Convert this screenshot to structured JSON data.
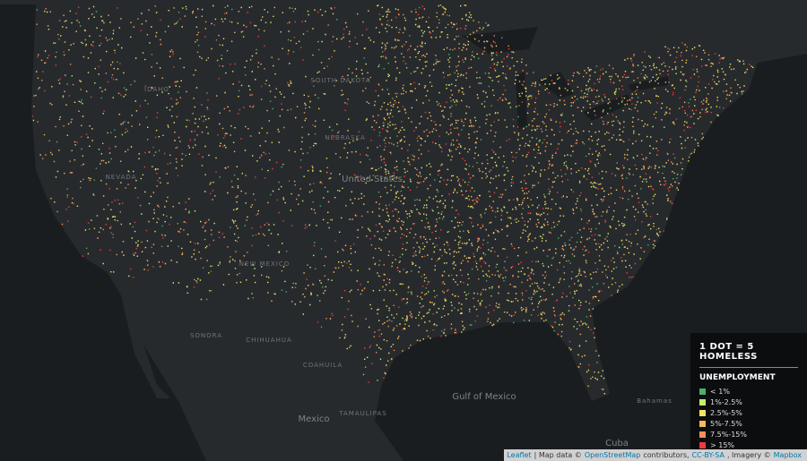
{
  "legend": {
    "title": "1 DOT = 5 HOMELESS",
    "subtitle": "UNEMPLOYMENT",
    "items": [
      {
        "label": "< 1%",
        "color": "#4caf6a"
      },
      {
        "label": "1%-2.5%",
        "color": "#c6ee6a"
      },
      {
        "label": "2.5%-5%",
        "color": "#f4e463"
      },
      {
        "label": "5%-7.5%",
        "color": "#f6b95c"
      },
      {
        "label": "7.5%-15%",
        "color": "#f48f58"
      },
      {
        "label": "> 15%",
        "color": "#ee3b3b"
      }
    ]
  },
  "map_labels": [
    "IDAHO",
    "SOUTH DAKOTA",
    "NEBRASKA",
    "NEVADA",
    "United States",
    "NEW MEXICO",
    "SONORA",
    "CHIHUAHUA",
    "COAHUILA",
    "TAMAULIPAS",
    "Mexico",
    "Gulf of Mexico",
    "Bahamas",
    "Cuba"
  ],
  "attribution": [
    "Leaflet",
    "| Map data ©",
    "OpenStreetMap",
    "contributors,",
    "CC-BY-SA",
    ", Imagery ©",
    "Mapbox"
  ]
}
